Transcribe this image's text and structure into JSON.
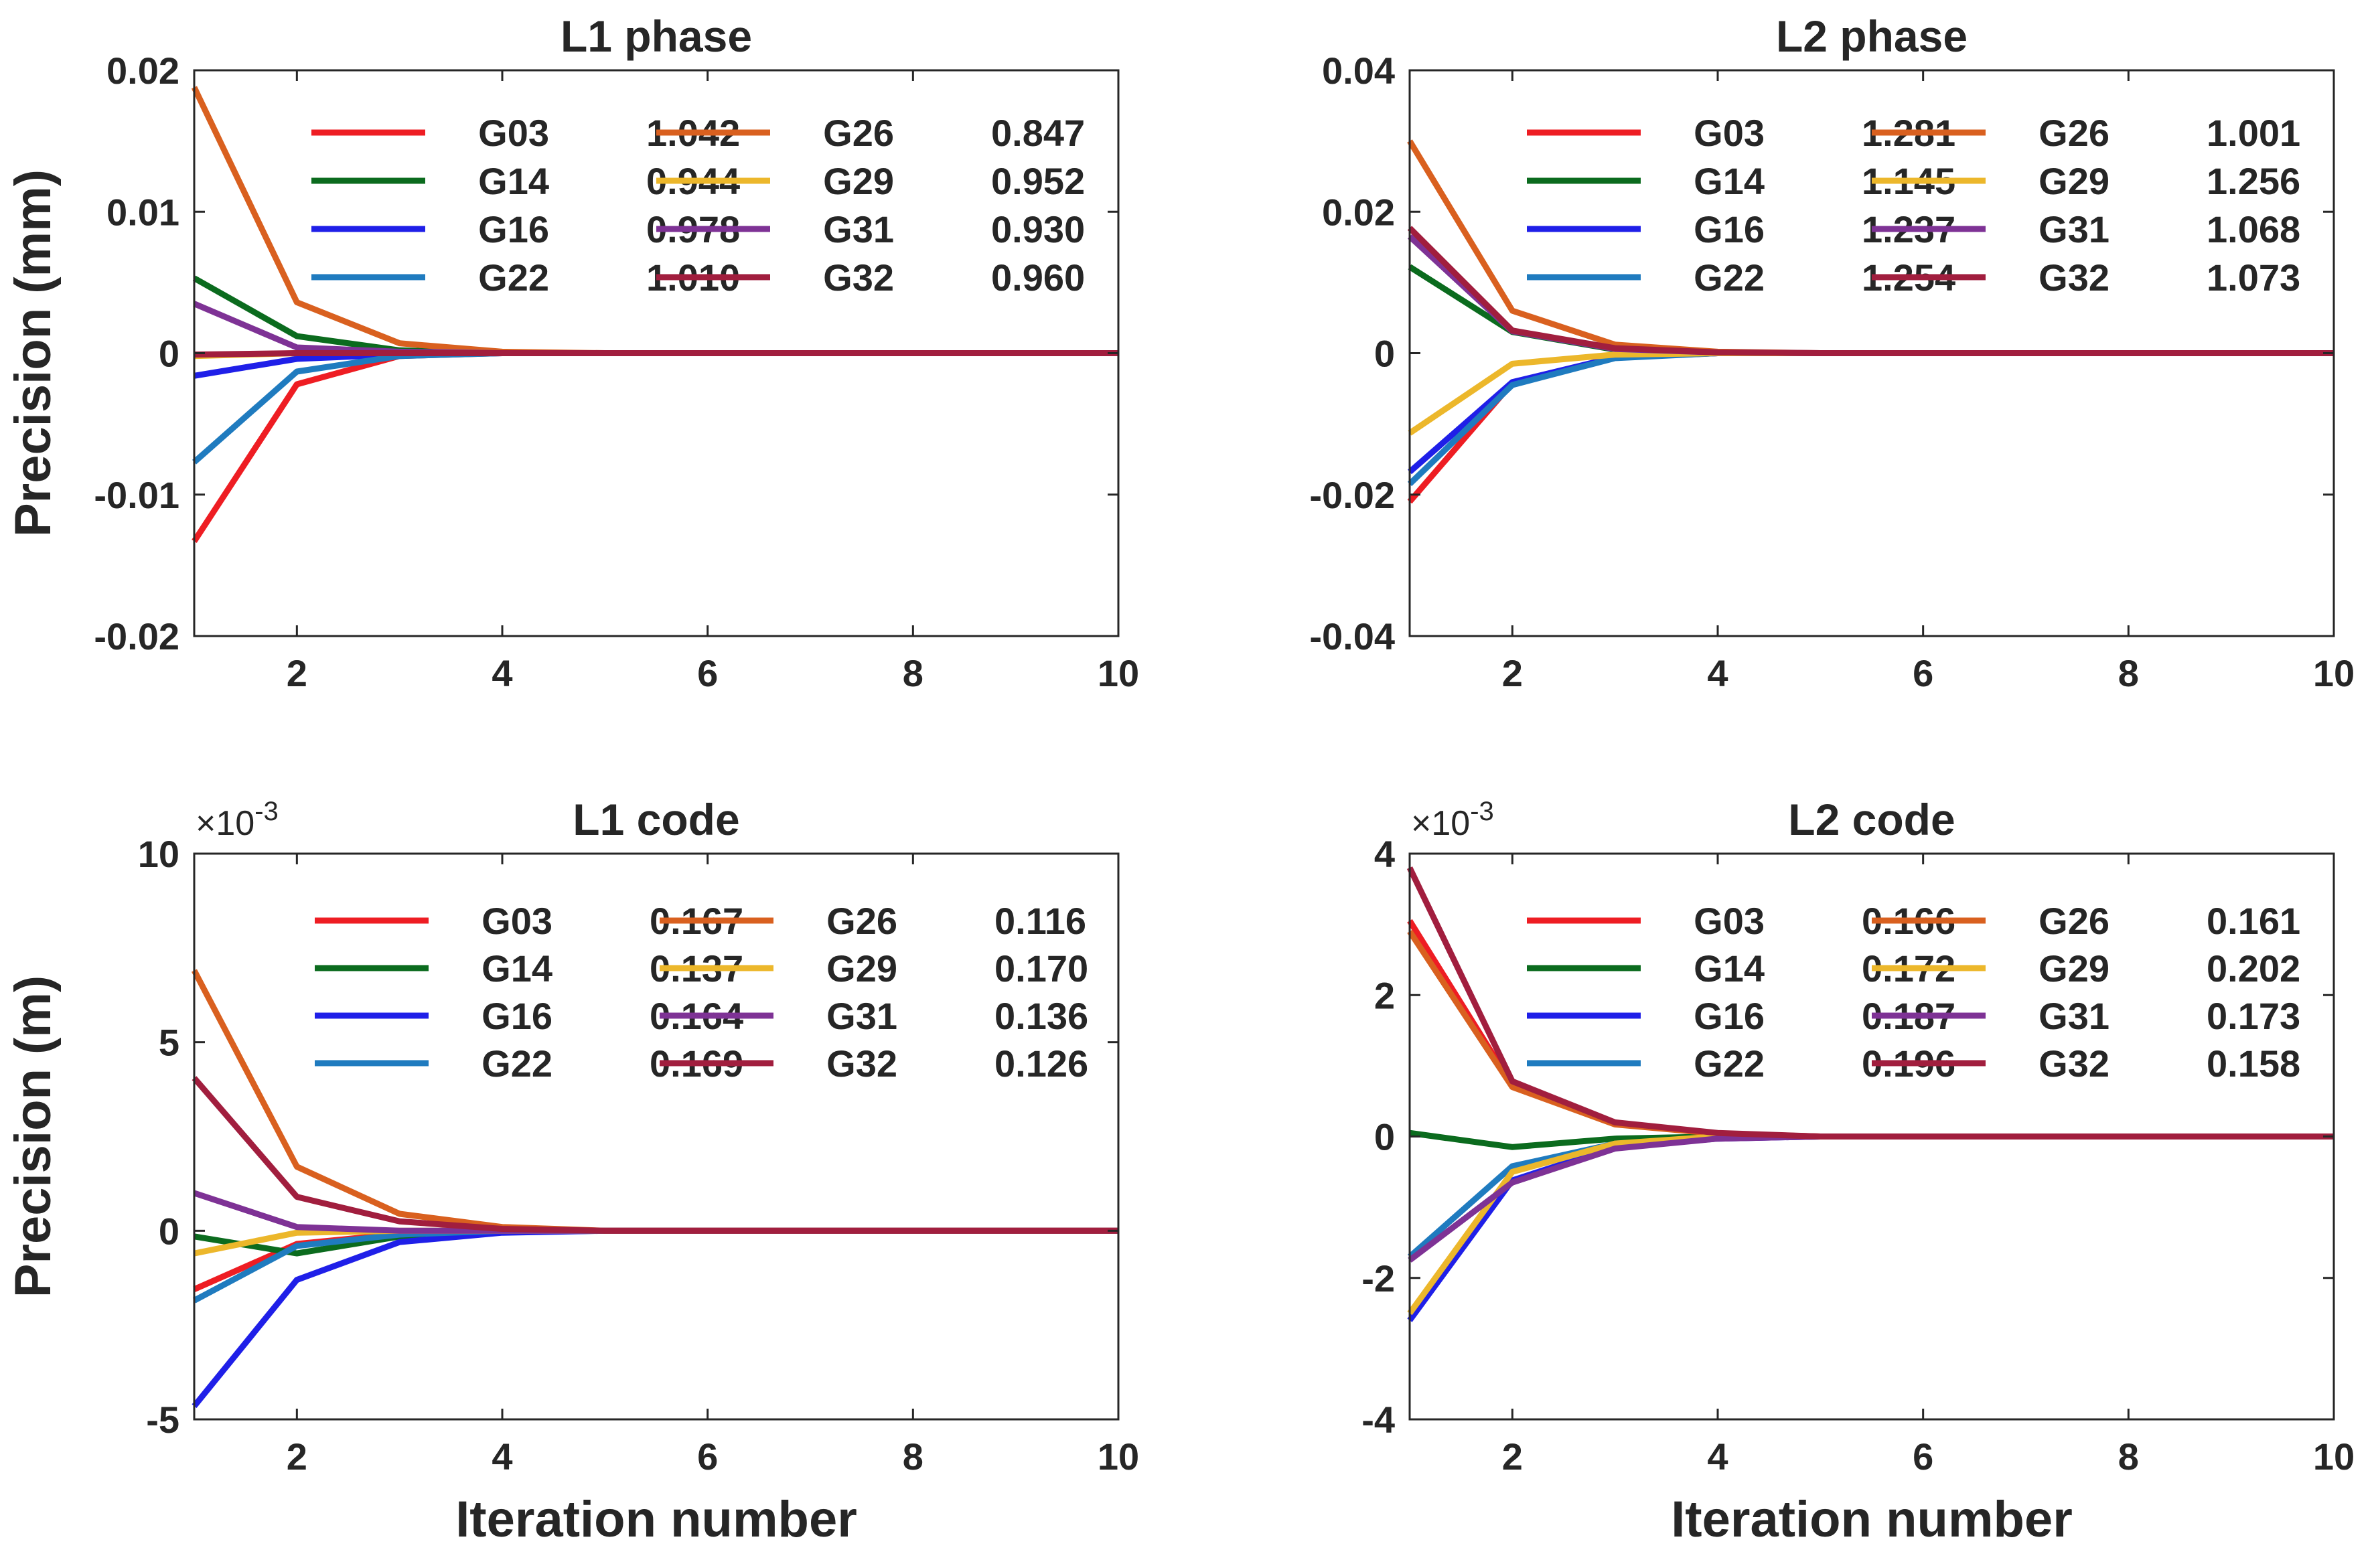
{
  "figure": {
    "xlabel": "Iteration number",
    "ylabel_phase": "Precision (mm)",
    "ylabel_code": "Precision (m)"
  },
  "colors": {
    "G03": "#ee1d23",
    "G14": "#0b6b1e",
    "G16": "#1f1fe8",
    "G22": "#1f7bbf",
    "G26": "#d9601f",
    "G29": "#ecb72b",
    "G31": "#7e3295",
    "G32": "#a11e3e"
  },
  "chart_data": [
    {
      "id": "l1-phase",
      "type": "line",
      "title": "L1 phase",
      "xlabel": "",
      "ylabel": "Precision (mm)",
      "xlim": [
        1,
        10
      ],
      "ylim": [
        -0.02,
        0.02
      ],
      "xticks": [
        "2",
        "4",
        "6",
        "8",
        "10"
      ],
      "yticks": [
        "-0.02",
        "-0.01",
        "0",
        "0.01",
        "0.02"
      ],
      "exponent_label": "",
      "x": [
        1,
        2,
        3,
        4,
        5,
        6,
        7,
        8,
        9,
        10
      ],
      "series": [
        {
          "name": "G03",
          "legend_value": "1.042",
          "values": [
            -0.0133,
            -0.0022,
            -0.0002,
            0,
            0,
            0,
            0,
            0,
            0,
            0
          ]
        },
        {
          "name": "G14",
          "legend_value": "0.944",
          "values": [
            0.0053,
            0.0012,
            0.0002,
            0,
            0,
            0,
            0,
            0,
            0,
            0
          ]
        },
        {
          "name": "G16",
          "legend_value": "0.978",
          "values": [
            -0.0016,
            -0.0004,
            -0.0001,
            0,
            0,
            0,
            0,
            0,
            0,
            0
          ]
        },
        {
          "name": "G22",
          "legend_value": "1.010",
          "values": [
            -0.0077,
            -0.0013,
            -0.0002,
            0,
            0,
            0,
            0,
            0,
            0,
            0
          ]
        },
        {
          "name": "G26",
          "legend_value": "0.847",
          "values": [
            0.0188,
            0.0036,
            0.0007,
            0.0001,
            0,
            0,
            0,
            0,
            0,
            0
          ]
        },
        {
          "name": "G29",
          "legend_value": "0.952",
          "values": [
            -0.0002,
            0,
            0,
            0,
            0,
            0,
            0,
            0,
            0,
            0
          ]
        },
        {
          "name": "G31",
          "legend_value": "0.930",
          "values": [
            0.0035,
            0.0004,
            0.0001,
            0,
            0,
            0,
            0,
            0,
            0,
            0
          ]
        },
        {
          "name": "G32",
          "legend_value": "0.960",
          "values": [
            -0.0001,
            0,
            0,
            0,
            0,
            0,
            0,
            0,
            0,
            0
          ]
        }
      ]
    },
    {
      "id": "l2-phase",
      "type": "line",
      "title": "L2 phase",
      "xlabel": "",
      "ylabel": "",
      "xlim": [
        1,
        10
      ],
      "ylim": [
        -0.04,
        0.04
      ],
      "xticks": [
        "2",
        "4",
        "6",
        "8",
        "10"
      ],
      "yticks": [
        "-0.04",
        "-0.02",
        "0",
        "0.02",
        "0.04"
      ],
      "exponent_label": "",
      "x": [
        1,
        2,
        3,
        4,
        5,
        6,
        7,
        8,
        9,
        10
      ],
      "series": [
        {
          "name": "G03",
          "legend_value": "1.281",
          "values": [
            -0.021,
            -0.0042,
            -0.0006,
            0,
            0,
            0,
            0,
            0,
            0,
            0
          ]
        },
        {
          "name": "G14",
          "legend_value": "1.145",
          "values": [
            0.0122,
            0.003,
            0.0005,
            0,
            0,
            0,
            0,
            0,
            0,
            0
          ]
        },
        {
          "name": "G16",
          "legend_value": "1.237",
          "values": [
            -0.0168,
            -0.0041,
            -0.0006,
            0,
            0,
            0,
            0,
            0,
            0,
            0
          ]
        },
        {
          "name": "G22",
          "legend_value": "1.254",
          "values": [
            -0.0185,
            -0.0045,
            -0.0007,
            0,
            0,
            0,
            0,
            0,
            0,
            0
          ]
        },
        {
          "name": "G26",
          "legend_value": "1.001",
          "values": [
            0.03,
            0.006,
            0.0012,
            0.0002,
            0,
            0,
            0,
            0,
            0,
            0
          ]
        },
        {
          "name": "G29",
          "legend_value": "1.256",
          "values": [
            -0.0113,
            -0.0015,
            -0.0002,
            0,
            0,
            0,
            0,
            0,
            0,
            0
          ]
        },
        {
          "name": "G31",
          "legend_value": "1.068",
          "values": [
            0.0165,
            0.0031,
            0.0006,
            0.0001,
            0,
            0,
            0,
            0,
            0,
            0
          ]
        },
        {
          "name": "G32",
          "legend_value": "1.073",
          "values": [
            0.0177,
            0.0032,
            0.0007,
            0.0001,
            0,
            0,
            0,
            0,
            0,
            0
          ]
        }
      ]
    },
    {
      "id": "l1-code",
      "type": "line",
      "title": "L1 code",
      "xlabel": "Iteration number",
      "ylabel": "Precision (m)",
      "xlim": [
        1,
        10
      ],
      "ylim": [
        -5,
        10
      ],
      "xticks": [
        "2",
        "4",
        "6",
        "8",
        "10"
      ],
      "yticks": [
        "-5",
        "0",
        "5",
        "10"
      ],
      "exponent_label": "×10",
      "exponent_power": "-3",
      "x": [
        1,
        2,
        3,
        4,
        5,
        6,
        7,
        8,
        9,
        10
      ],
      "series": [
        {
          "name": "G03",
          "legend_value": "0.167",
          "values": [
            -1.55,
            -0.35,
            -0.08,
            0,
            0,
            0,
            0,
            0,
            0,
            0
          ]
        },
        {
          "name": "G14",
          "legend_value": "0.137",
          "values": [
            -0.15,
            -0.6,
            -0.15,
            -0.03,
            0,
            0,
            0,
            0,
            0,
            0
          ]
        },
        {
          "name": "G16",
          "legend_value": "0.164",
          "values": [
            -4.65,
            -1.3,
            -0.3,
            -0.05,
            0,
            0,
            0,
            0,
            0,
            0
          ]
        },
        {
          "name": "G22",
          "legend_value": "0.169",
          "values": [
            -1.85,
            -0.4,
            -0.1,
            0,
            0,
            0,
            0,
            0,
            0,
            0
          ]
        },
        {
          "name": "G26",
          "legend_value": "0.116",
          "values": [
            6.9,
            1.7,
            0.45,
            0.1,
            0,
            0,
            0,
            0,
            0,
            0
          ]
        },
        {
          "name": "G29",
          "legend_value": "0.170",
          "values": [
            -0.6,
            -0.05,
            0,
            0,
            0,
            0,
            0,
            0,
            0,
            0
          ]
        },
        {
          "name": "G31",
          "legend_value": "0.136",
          "values": [
            1.0,
            0.1,
            0,
            0,
            0,
            0,
            0,
            0,
            0,
            0
          ]
        },
        {
          "name": "G32",
          "legend_value": "0.126",
          "values": [
            4.05,
            0.9,
            0.25,
            0.05,
            0,
            0,
            0,
            0,
            0,
            0
          ]
        }
      ]
    },
    {
      "id": "l2-code",
      "type": "line",
      "title": "L2 code",
      "xlabel": "Iteration number",
      "ylabel": "",
      "xlim": [
        1,
        10
      ],
      "ylim": [
        -4,
        4
      ],
      "xticks": [
        "2",
        "4",
        "6",
        "8",
        "10"
      ],
      "yticks": [
        "-4",
        "-2",
        "0",
        "2",
        "4"
      ],
      "exponent_label": "×10",
      "exponent_power": "-3",
      "x": [
        1,
        2,
        3,
        4,
        5,
        6,
        7,
        8,
        9,
        10
      ],
      "series": [
        {
          "name": "G03",
          "legend_value": "0.166",
          "values": [
            3.05,
            0.72,
            0.18,
            0.04,
            0,
            0,
            0,
            0,
            0,
            0
          ]
        },
        {
          "name": "G14",
          "legend_value": "0.172",
          "values": [
            0.05,
            -0.15,
            -0.03,
            0,
            0,
            0,
            0,
            0,
            0,
            0
          ]
        },
        {
          "name": "G16",
          "legend_value": "0.187",
          "values": [
            -2.6,
            -0.62,
            -0.15,
            -0.03,
            0,
            0,
            0,
            0,
            0,
            0
          ]
        },
        {
          "name": "G22",
          "legend_value": "0.196",
          "values": [
            -1.7,
            -0.42,
            -0.1,
            -0.02,
            0,
            0,
            0,
            0,
            0,
            0
          ]
        },
        {
          "name": "G26",
          "legend_value": "0.161",
          "values": [
            2.9,
            0.7,
            0.17,
            0.04,
            0,
            0,
            0,
            0,
            0,
            0
          ]
        },
        {
          "name": "G29",
          "legend_value": "0.202",
          "values": [
            -2.5,
            -0.5,
            -0.1,
            0,
            0,
            0,
            0,
            0,
            0,
            0
          ]
        },
        {
          "name": "G31",
          "legend_value": "0.173",
          "values": [
            -1.75,
            -0.65,
            -0.17,
            -0.03,
            0,
            0,
            0,
            0,
            0,
            0
          ]
        },
        {
          "name": "G32",
          "legend_value": "0.158",
          "values": [
            3.8,
            0.78,
            0.2,
            0.05,
            0,
            0,
            0,
            0,
            0,
            0
          ]
        }
      ]
    }
  ]
}
